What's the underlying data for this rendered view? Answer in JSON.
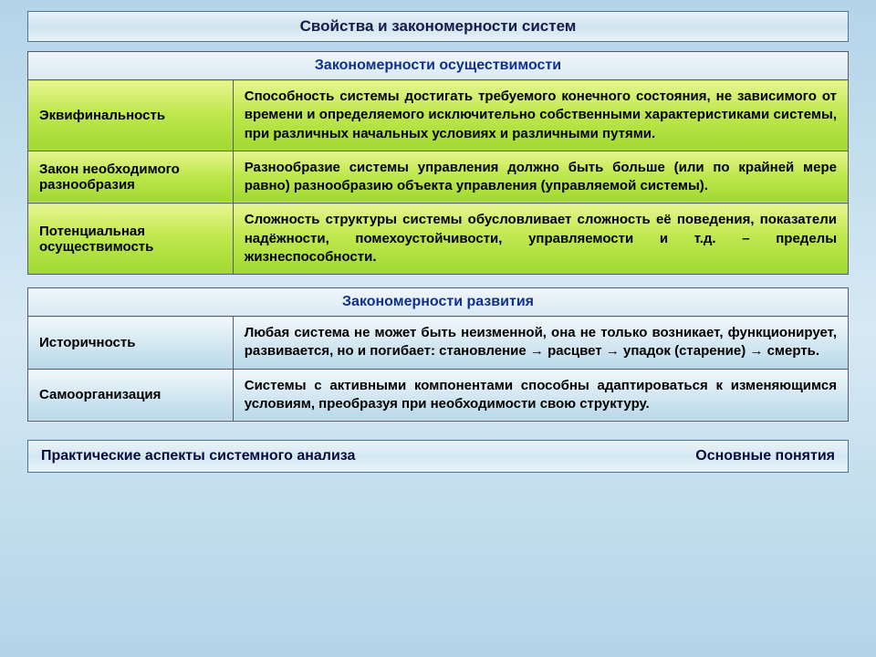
{
  "page_title": "Свойства и закономерности систем",
  "section1": {
    "header": "Закономерности осуществимости",
    "header_color": "#103090",
    "row_style": "green",
    "rows": [
      {
        "term": "Эквифинальность",
        "desc": "Способность системы достигать требуемого конечного состояния, не зависимого от времени и определяемого исключительно собственными характеристиками системы, при различных начальных условиях и различными путями."
      },
      {
        "term": "Закон необходимого разнообразия",
        "desc": "Разнообразие системы управления должно быть больше (или по крайней мере равно) разнообразию объекта управления (управляемой системы)."
      },
      {
        "term": "Потенциальная осуществимость",
        "desc": "Сложность структуры системы обусловливает сложность её поведения, показатели надёжности, помехоустойчивости, управляемости и т.д. – пределы жизнеспособности."
      }
    ]
  },
  "section2": {
    "header": "Закономерности развития",
    "header_color": "#103090",
    "row_style": "blue",
    "rows": [
      {
        "term": "Историчность",
        "desc": "Любая система не может быть неизменной, она не только возникает, функционирует, развивается, но и погибает: становление → расцвет → упадок (старение) → смерть."
      },
      {
        "term": "Самоорганизация",
        "desc": "Системы с активными компонентами способны адаптироваться к изменяющимся условиям, преобразуя при необходимости свою структуру."
      }
    ]
  },
  "footer": {
    "left": "Практические аспекты системного анализа",
    "right": "Основные понятия"
  },
  "colors": {
    "page_bg_top": "#b3d4e8",
    "page_bg_mid": "#d6e9f3",
    "green_grad_top": "#e8f590",
    "green_grad_bot": "#a0d830",
    "blue_grad_top": "#f2f8fb",
    "blue_grad_bot": "#b8d8e8",
    "border": "#5a5a6a"
  },
  "typography": {
    "title_fontsize": 17,
    "header_fontsize": 16,
    "cell_fontsize": 15,
    "font_family": "Arial"
  }
}
